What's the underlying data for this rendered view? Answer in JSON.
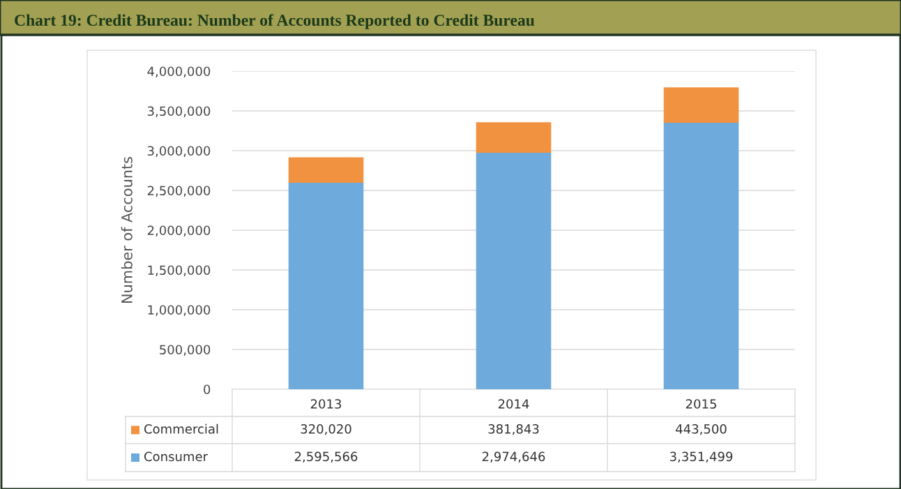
{
  "chart_data": {
    "type": "bar",
    "title": "Chart 19: Credit Bureau: Number of Accounts Reported to Credit Bureau",
    "ylabel": "Number of Accounts",
    "categories": [
      "2013",
      "2014",
      "2015"
    ],
    "stacked": true,
    "series": [
      {
        "name": "Consumer",
        "color": "#6eaadb",
        "values": [
          2595566,
          2974646,
          3351499
        ],
        "value_labels": [
          "2,595,566",
          "2,974,646",
          "3,351,499"
        ]
      },
      {
        "name": "Commercial",
        "color": "#f0923f",
        "values": [
          320020,
          381843,
          443500
        ],
        "value_labels": [
          "320,020",
          "381,843",
          "443,500"
        ]
      }
    ],
    "ylim": [
      0,
      4000000
    ],
    "yticks": [
      {
        "value": 0,
        "label": "0"
      },
      {
        "value": 500000,
        "label": "500,000"
      },
      {
        "value": 1000000,
        "label": "1,000,000"
      },
      {
        "value": 1500000,
        "label": "1,500,000"
      },
      {
        "value": 2000000,
        "label": "2,000,000"
      },
      {
        "value": 2500000,
        "label": "2,500,000"
      },
      {
        "value": 3000000,
        "label": "3,000,000"
      },
      {
        "value": 3500000,
        "label": "3,500,000"
      },
      {
        "value": 4000000,
        "label": "4,000,000"
      }
    ],
    "grid": "y",
    "data_labels": true,
    "legend": "bottom"
  }
}
